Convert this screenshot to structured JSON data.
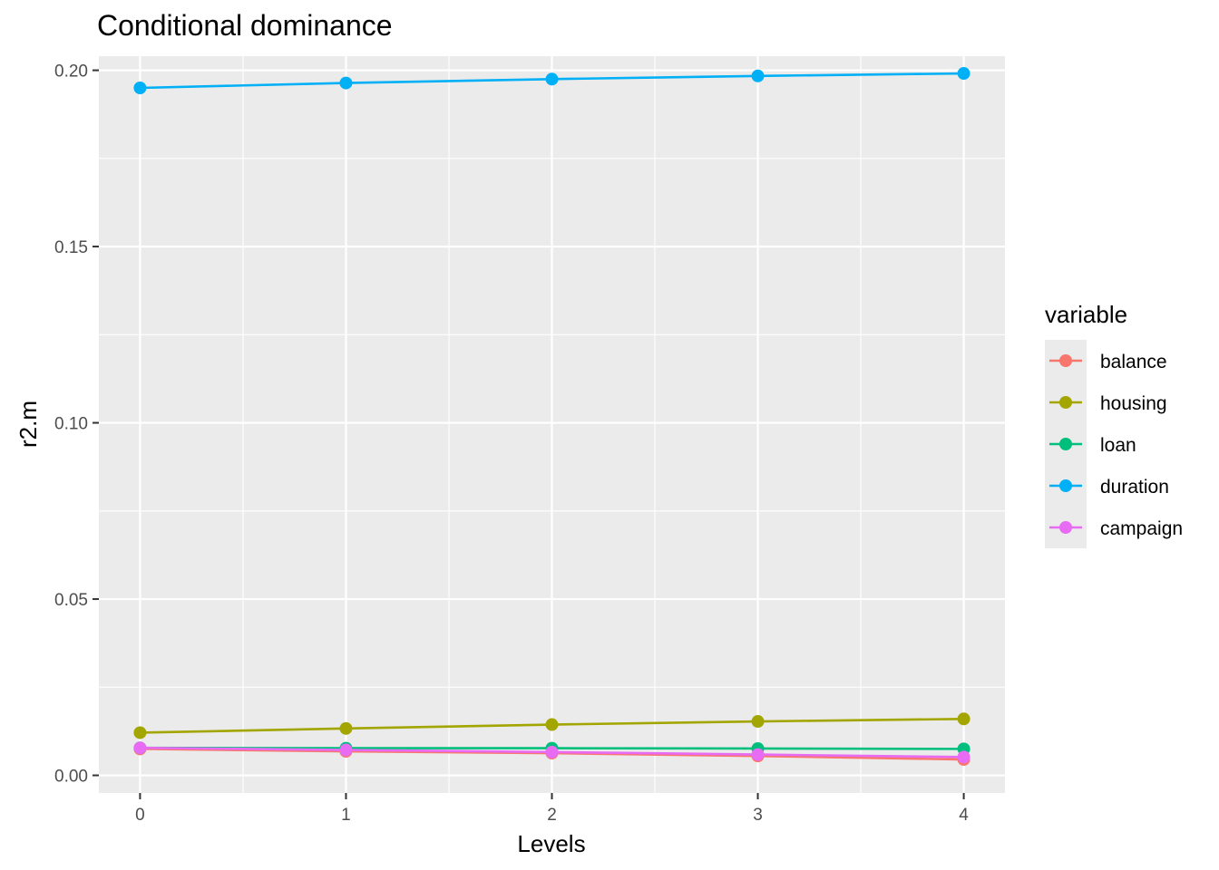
{
  "chart_data": {
    "type": "line",
    "title": "Conditional dominance",
    "xlabel": "Levels",
    "ylabel": "r2.m",
    "x": [
      0,
      1,
      2,
      3,
      4
    ],
    "xlim": [
      -0.2,
      4.2
    ],
    "ylim": [
      -0.005,
      0.204
    ],
    "x_ticks": [
      0,
      1,
      2,
      3,
      4
    ],
    "x_tick_labels": [
      "0",
      "1",
      "2",
      "3",
      "4"
    ],
    "y_ticks": [
      0.0,
      0.05,
      0.1,
      0.15,
      0.2
    ],
    "y_tick_labels": [
      "0.00",
      "0.05",
      "0.10",
      "0.15",
      "0.20"
    ],
    "grid": true,
    "legend": {
      "title": "variable",
      "position": "right"
    },
    "series": [
      {
        "name": "balance",
        "color": "#F8766D",
        "values": [
          0.0075,
          0.0068,
          0.0063,
          0.0055,
          0.0045
        ]
      },
      {
        "name": "housing",
        "color": "#A3A500",
        "values": [
          0.0121,
          0.0133,
          0.0144,
          0.0153,
          0.016
        ]
      },
      {
        "name": "loan",
        "color": "#00BF7D",
        "values": [
          0.0078,
          0.0077,
          0.0077,
          0.0076,
          0.0075
        ]
      },
      {
        "name": "duration",
        "color": "#00B0F6",
        "values": [
          0.195,
          0.1964,
          0.1975,
          0.1984,
          0.1991
        ]
      },
      {
        "name": "campaign",
        "color": "#E76BF3",
        "values": [
          0.0078,
          0.0072,
          0.0066,
          0.0059,
          0.0052
        ]
      }
    ]
  }
}
